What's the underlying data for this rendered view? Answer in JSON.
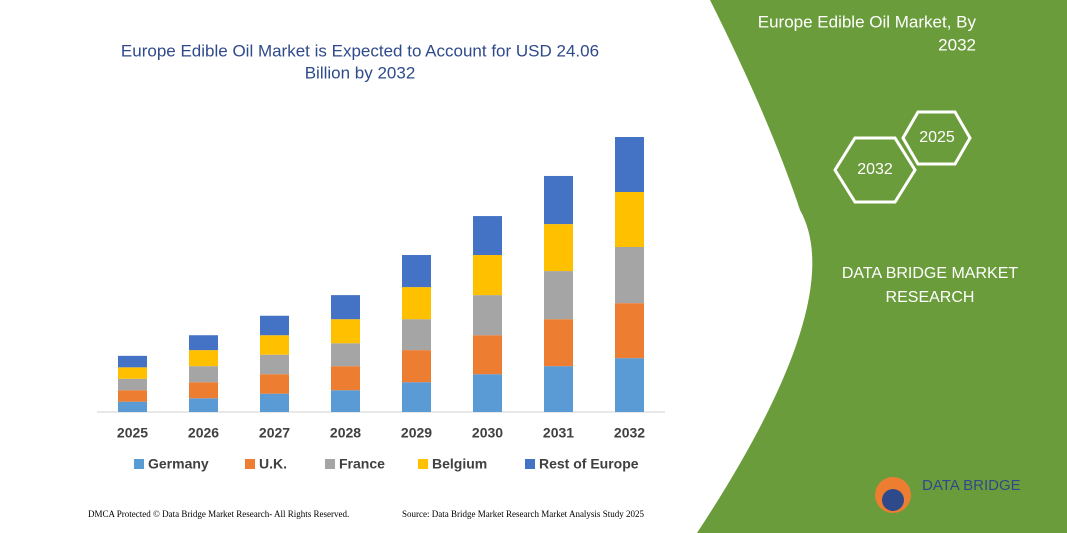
{
  "chart_data": {
    "type": "stacked_bar",
    "title": [
      "Europe Edible Oil Market is Expected to Account for USD 24.06",
      "Billion by 2032"
    ],
    "categories": [
      "2025",
      "2026",
      "2027",
      "2028",
      "2029",
      "2030",
      "2031",
      "2032"
    ],
    "series": [
      {
        "name": "Germany",
        "color": "#5b9bd5",
        "values": [
          0.9,
          1.2,
          1.6,
          1.9,
          2.6,
          3.3,
          4.0,
          4.7
        ]
      },
      {
        "name": "U.K.",
        "color": "#ed7d31",
        "values": [
          1.0,
          1.4,
          1.7,
          2.1,
          2.8,
          3.4,
          4.1,
          4.8
        ]
      },
      {
        "name": "France",
        "color": "#a5a5a5",
        "values": [
          1.0,
          1.4,
          1.7,
          2.0,
          2.7,
          3.5,
          4.2,
          4.9
        ]
      },
      {
        "name": "Belgium",
        "color": "#ffc000",
        "values": [
          1.0,
          1.4,
          1.7,
          2.1,
          2.8,
          3.5,
          4.1,
          4.8
        ]
      },
      {
        "name": "Rest of Europe",
        "color": "#4472c4",
        "values": [
          1.0,
          1.3,
          1.7,
          2.1,
          2.8,
          3.4,
          4.2,
          4.8
        ]
      }
    ],
    "ylim": [
      0,
      24
    ],
    "legend": "bottom"
  },
  "panel": {
    "title": [
      "Europe Edible Oil Market, By",
      "2032"
    ],
    "hex_left": "2032",
    "hex_right": "2025",
    "company": [
      "DATA BRIDGE MARKET",
      "RESEARCH"
    ],
    "logo": "DATA BRIDGE"
  },
  "footer": {
    "left": "DMCA Protected © Data Bridge Market Research- All Rights Reserved.",
    "right": "Source: Data Bridge Market Research  Market Analysis Study 2025"
  }
}
